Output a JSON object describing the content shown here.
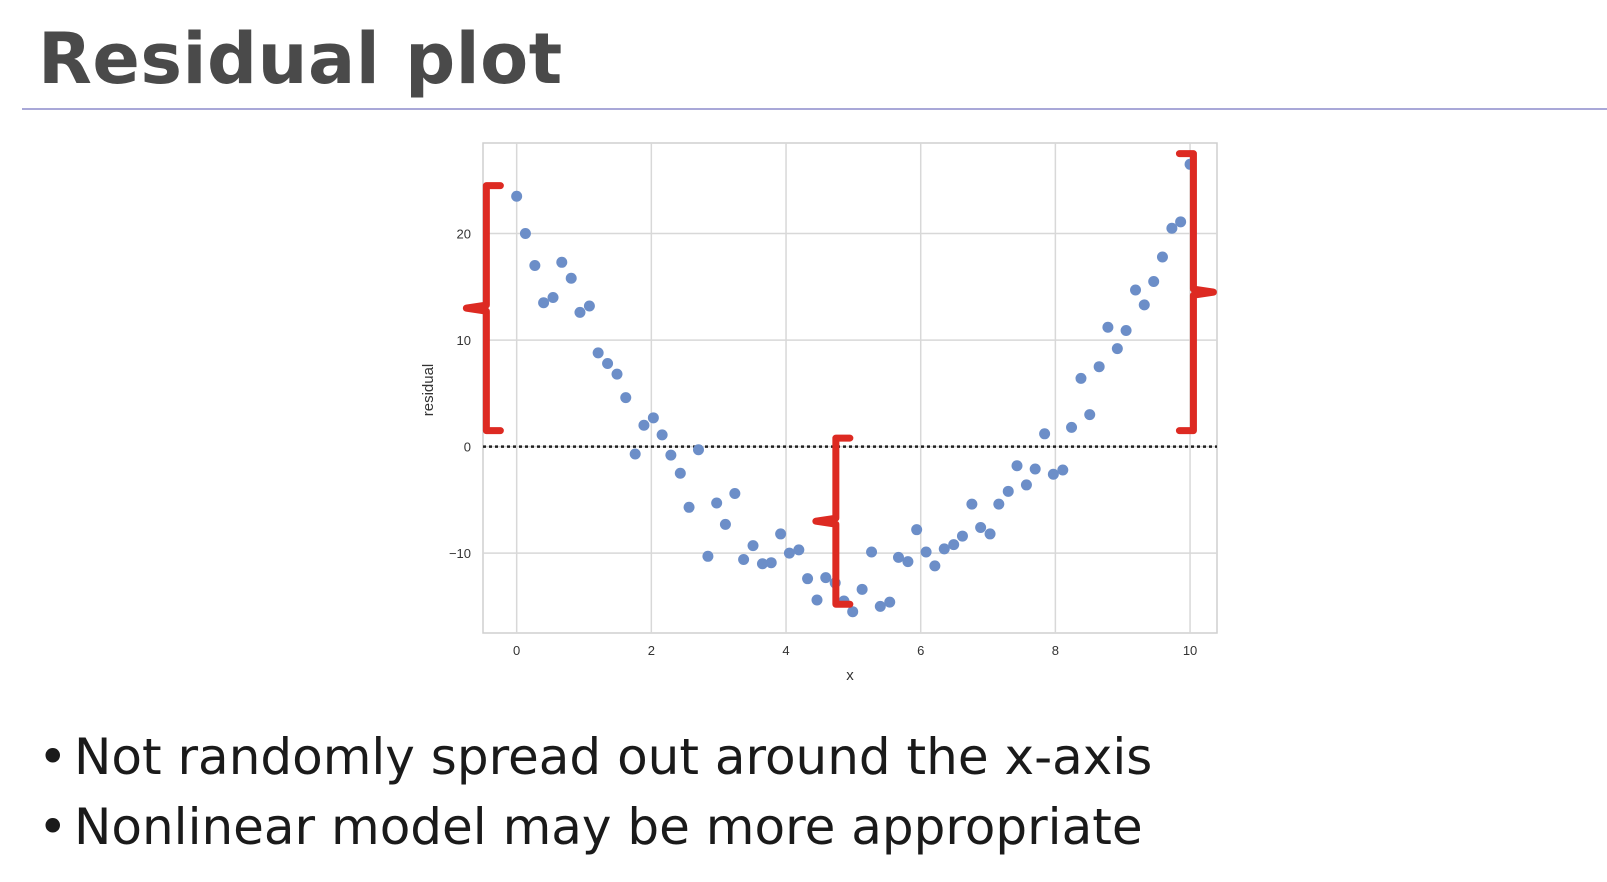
{
  "slide": {
    "title": "Residual plot",
    "bullet_char": "•",
    "bullets": [
      "Not randomly spread out around the x-axis",
      "Nonlinear model may be more appropriate"
    ]
  },
  "colors": {
    "point": "#6c8ec8",
    "bracket": "#dd2a22",
    "grid": "#d8d8d8",
    "zero_line": "#222222",
    "title": "#4a4a4a",
    "rule": "#a9a8d8"
  },
  "chart_data": {
    "type": "scatter",
    "xlabel": "x",
    "ylabel": "residual",
    "xlim": [
      -0.5,
      10.4
    ],
    "ylim": [
      -17.5,
      28.5
    ],
    "xticks": [
      0,
      2,
      4,
      6,
      8,
      10
    ],
    "yticks": [
      -10,
      0,
      10,
      20
    ],
    "grid": true,
    "zero_reference_line": 0,
    "points": [
      [
        0.0,
        23.5
      ],
      [
        0.13,
        20.0
      ],
      [
        0.27,
        17.0
      ],
      [
        0.4,
        13.5
      ],
      [
        0.54,
        14.0
      ],
      [
        0.67,
        17.3
      ],
      [
        0.81,
        15.8
      ],
      [
        0.94,
        12.6
      ],
      [
        1.08,
        13.2
      ],
      [
        1.21,
        8.8
      ],
      [
        1.35,
        7.8
      ],
      [
        1.49,
        6.8
      ],
      [
        1.62,
        4.6
      ],
      [
        1.76,
        -0.7
      ],
      [
        1.89,
        2.0
      ],
      [
        2.03,
        2.7
      ],
      [
        2.16,
        1.1
      ],
      [
        2.29,
        -0.8
      ],
      [
        2.43,
        -2.5
      ],
      [
        2.56,
        -5.7
      ],
      [
        2.7,
        -0.3
      ],
      [
        2.84,
        -10.3
      ],
      [
        2.97,
        -5.3
      ],
      [
        3.1,
        -7.3
      ],
      [
        3.24,
        -4.4
      ],
      [
        3.37,
        -10.6
      ],
      [
        3.51,
        -9.3
      ],
      [
        3.65,
        -11.0
      ],
      [
        3.78,
        -10.9
      ],
      [
        3.92,
        -8.2
      ],
      [
        4.05,
        -10.0
      ],
      [
        4.19,
        -9.7
      ],
      [
        4.32,
        -12.4
      ],
      [
        4.46,
        -14.4
      ],
      [
        4.59,
        -12.3
      ],
      [
        4.73,
        -12.8
      ],
      [
        4.86,
        -14.5
      ],
      [
        4.99,
        -15.5
      ],
      [
        5.13,
        -13.4
      ],
      [
        5.27,
        -9.9
      ],
      [
        5.4,
        -15.0
      ],
      [
        5.54,
        -14.6
      ],
      [
        5.67,
        -10.4
      ],
      [
        5.81,
        -10.8
      ],
      [
        5.94,
        -7.8
      ],
      [
        6.08,
        -9.9
      ],
      [
        6.21,
        -11.2
      ],
      [
        6.35,
        -9.6
      ],
      [
        6.49,
        -9.2
      ],
      [
        6.62,
        -8.4
      ],
      [
        6.76,
        -5.4
      ],
      [
        6.89,
        -7.6
      ],
      [
        7.03,
        -8.2
      ],
      [
        7.16,
        -5.4
      ],
      [
        7.3,
        -4.2
      ],
      [
        7.43,
        -1.8
      ],
      [
        7.57,
        -3.6
      ],
      [
        7.7,
        -2.1
      ],
      [
        7.84,
        1.2
      ],
      [
        7.97,
        -2.6
      ],
      [
        8.11,
        -2.2
      ],
      [
        8.24,
        1.8
      ],
      [
        8.38,
        6.4
      ],
      [
        8.51,
        3.0
      ],
      [
        8.65,
        7.5
      ],
      [
        8.78,
        11.2
      ],
      [
        8.92,
        9.2
      ],
      [
        9.05,
        10.9
      ],
      [
        9.19,
        14.7
      ],
      [
        9.32,
        13.3
      ],
      [
        9.46,
        15.5
      ],
      [
        9.59,
        17.8
      ],
      [
        9.73,
        20.5
      ],
      [
        9.86,
        21.1
      ],
      [
        10.0,
        26.5
      ]
    ],
    "annotations": [
      {
        "kind": "curly-bracket",
        "side": "left",
        "y_range": [
          1.5,
          24.5
        ],
        "x": -0.45
      },
      {
        "kind": "curly-bracket",
        "side": "left",
        "y_range": [
          -14.8,
          0.8
        ],
        "x": 4.74
      },
      {
        "kind": "curly-bracket",
        "side": "right",
        "y_range": [
          1.5,
          27.5
        ],
        "x": 10.05
      }
    ]
  }
}
